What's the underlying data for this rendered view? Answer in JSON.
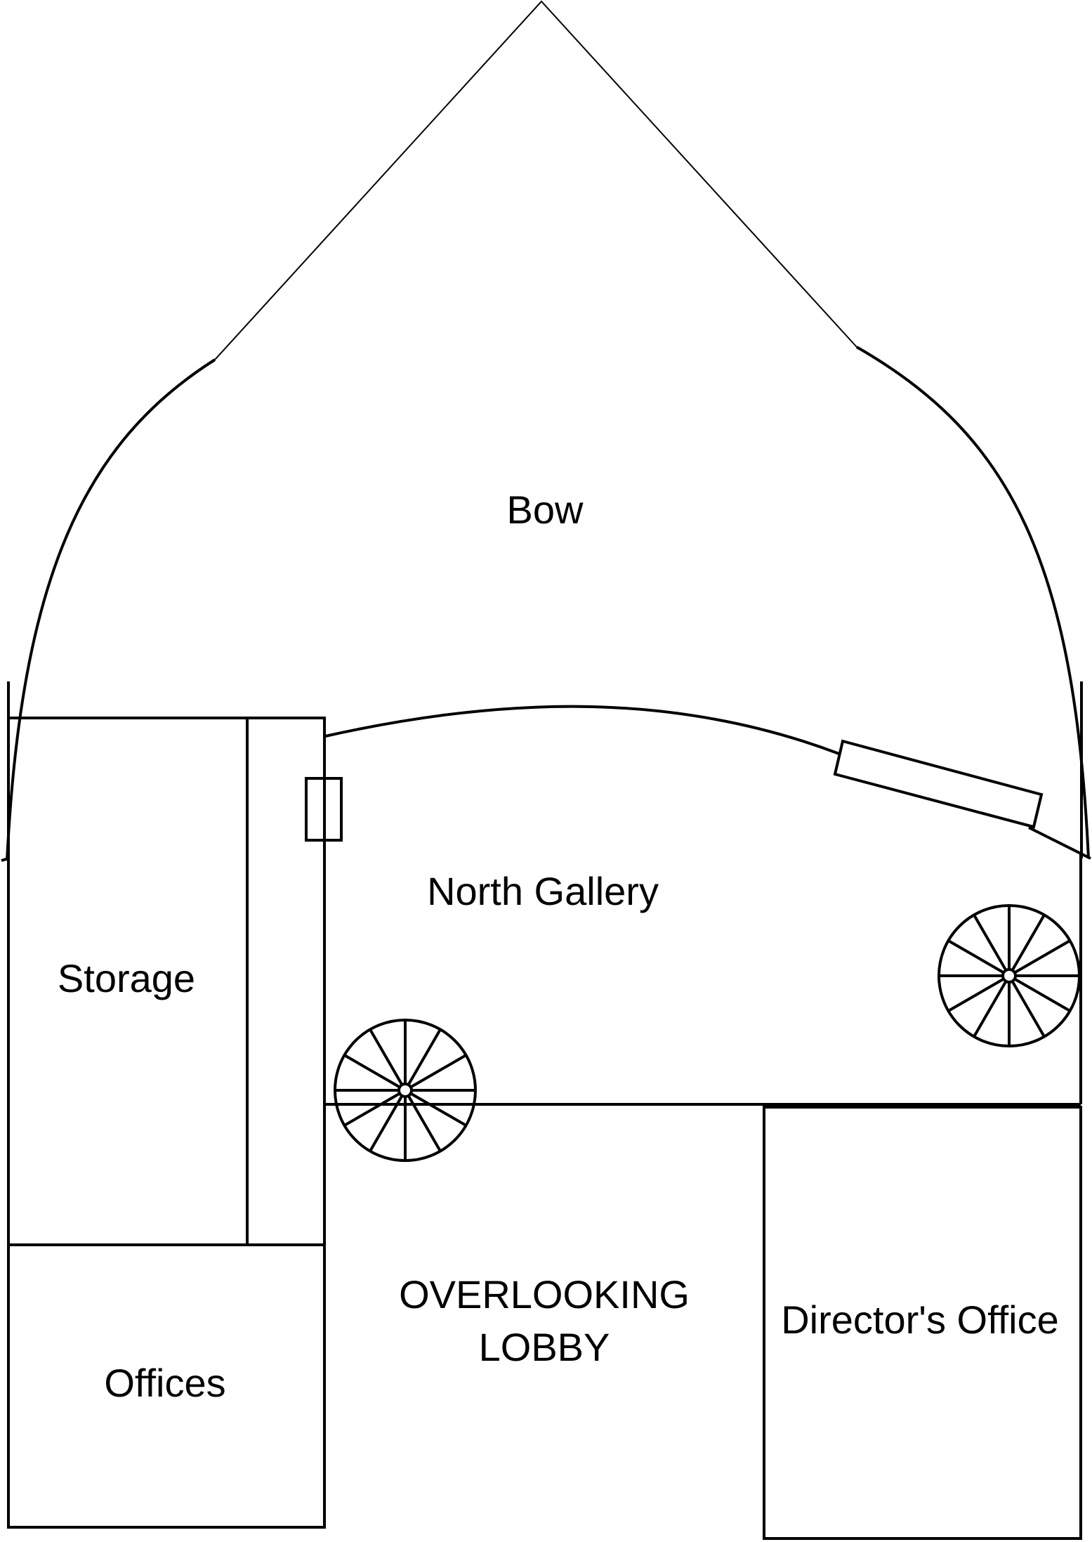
{
  "floor_plan": {
    "rooms": {
      "bow": "Bow",
      "north_gallery": "North Gallery",
      "storage": "Storage",
      "offices": "Offices",
      "overlooking_lobby_line1": "OVERLOOKING",
      "overlooking_lobby_line2": "LOBBY",
      "directors_office": "Director's Office"
    },
    "features": {
      "spiral_staircase_count": 2,
      "stair_spokes_per_staircase": 12
    },
    "colors": {
      "line": "#000000",
      "background": "#ffffff"
    }
  }
}
